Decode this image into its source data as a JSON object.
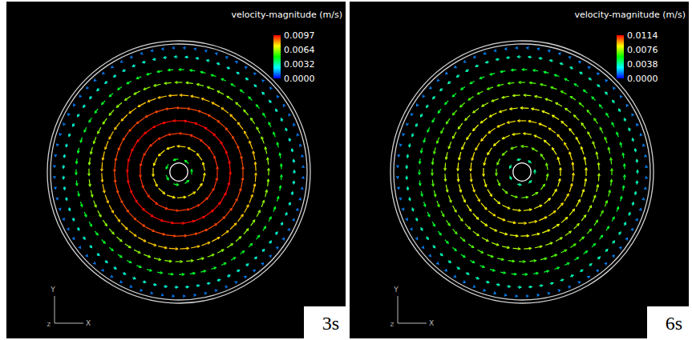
{
  "chart_data": [
    {
      "type": "vector_field",
      "title": "velocity-magnitude (m/s)",
      "label": "3s",
      "colorbar": {
        "range": [
          0,
          0.0097
        ],
        "ticks": [
          {
            "value": 0,
            "label": "0.0000"
          },
          0.0032,
          0.0064,
          0.0097
        ]
      },
      "profile": {
        "r": [
          0.1,
          0.2,
          0.3,
          0.4,
          0.5,
          0.6,
          0.7,
          0.8,
          0.9,
          0.97
        ],
        "speed": [
          0.0045,
          0.0075,
          0.0092,
          0.0096,
          0.009,
          0.0078,
          0.0062,
          0.0045,
          0.0028,
          0.0012
        ]
      },
      "axis_triad": {
        "x": "X",
        "y": "Y",
        "z": "Z"
      }
    },
    {
      "type": "vector_field",
      "title": "velocity-magnitude (m/s)",
      "label": "6s",
      "colorbar": {
        "range": [
          0,
          0.0114
        ],
        "ticks": [
          {
            "value": 0,
            "label": "0.0000"
          },
          0.0038,
          0.0076,
          0.0114
        ]
      },
      "profile": {
        "r": [
          0.1,
          0.2,
          0.3,
          0.4,
          0.5,
          0.6,
          0.7,
          0.8,
          0.9,
          0.97
        ],
        "speed": [
          0.004,
          0.007,
          0.0085,
          0.0088,
          0.0084,
          0.0076,
          0.0066,
          0.0052,
          0.0036,
          0.0015
        ]
      },
      "axis_triad": {
        "x": "X",
        "y": "Y",
        "z": "Z"
      }
    }
  ]
}
